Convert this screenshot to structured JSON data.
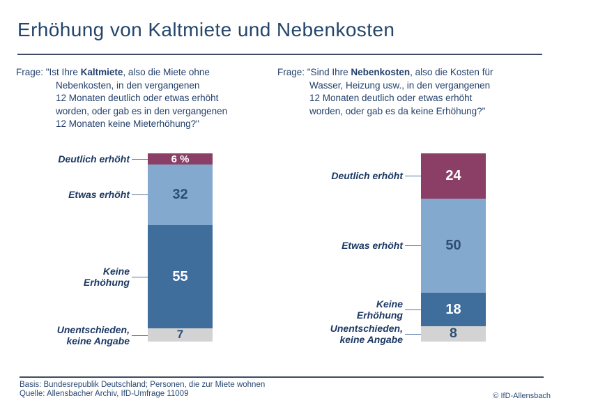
{
  "title": "Erhöhung von Kaltmiete und Nebenkosten",
  "questions": {
    "left": {
      "prefix": "Frage: \"Ist Ihre ",
      "bold": "Kaltmiete",
      "suffix": ", also die Miete ohne",
      "lines": [
        "Nebenkosten, in den vergangenen",
        "12 Monaten deutlich oder etwas erhöht",
        "worden, oder gab es in den vergangenen",
        "12 Monaten keine Mieterhöhung?\""
      ]
    },
    "right": {
      "prefix": "Frage: \"Sind Ihre ",
      "bold": "Nebenkosten",
      "suffix": ", also die Kosten für",
      "lines": [
        "Wasser, Heizung usw., in den vergangenen",
        "12 Monaten deutlich oder etwas erhöht",
        "worden, oder gab es da keine Erhöhung?\""
      ]
    }
  },
  "chart_data": [
    {
      "type": "bar",
      "stacked": true,
      "orientation": "vertical",
      "name": "Kaltmiete",
      "unit": "percent",
      "total": 100,
      "categories": [
        "Deutlich erhöht",
        "Etwas erhöht",
        "Keine Erhöhung",
        "Unentschieden, keine Angabe"
      ],
      "values": [
        6,
        32,
        55,
        7
      ],
      "display_values": [
        "6 %",
        "32",
        "55",
        "7"
      ],
      "colors": [
        "#8C3F66",
        "#84A9CE",
        "#3F6D9C",
        "#D3D3D3"
      ],
      "value_text_colors": [
        "#FFFFFF",
        "#2C4E73",
        "#FFFFFF",
        "#2C4E73"
      ],
      "label_lines": [
        [
          "Deutlich erhöht"
        ],
        [
          "Etwas erhöht"
        ],
        [
          "Keine",
          "Erhöhung"
        ],
        [
          "Unentschieden,",
          "keine Angabe"
        ]
      ]
    },
    {
      "type": "bar",
      "stacked": true,
      "orientation": "vertical",
      "name": "Nebenkosten",
      "unit": "percent",
      "total": 100,
      "categories": [
        "Deutlich erhöht",
        "Etwas erhöht",
        "Keine Erhöhung",
        "Unentschieden, keine Angabe"
      ],
      "values": [
        24,
        50,
        18,
        8
      ],
      "display_values": [
        "24",
        "50",
        "18",
        "8"
      ],
      "colors": [
        "#8C3F66",
        "#84A9CE",
        "#3F6D9C",
        "#D3D3D3"
      ],
      "value_text_colors": [
        "#FFFFFF",
        "#2C4E73",
        "#FFFFFF",
        "#2C4E73"
      ],
      "label_lines": [
        [
          "Deutlich erhöht"
        ],
        [
          "Etwas erhöht"
        ],
        [
          "Keine",
          "Erhöhung"
        ],
        [
          "Unentschieden,",
          "keine Angabe"
        ]
      ]
    }
  ],
  "footer": {
    "basis": "Basis: Bundesrepublik Deutschland; Personen, die zur Miete wohnen",
    "quelle": "Quelle: Allensbacher Archiv, IfD-Umfrage 11009",
    "copyright": "© IfD-Allensbach"
  },
  "accent_colors": {
    "navy_text": "#24416B",
    "rule": "#3E4C63",
    "maroon": "#8C3F66",
    "light_blue": "#84A9CE",
    "dark_blue": "#3F6D9C",
    "gray": "#D3D3D3"
  }
}
